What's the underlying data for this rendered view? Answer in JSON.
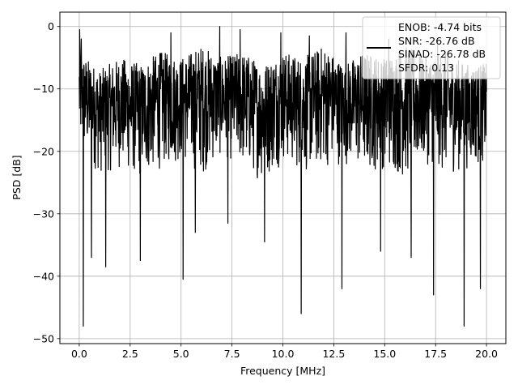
{
  "chart_data": {
    "type": "line",
    "title": "",
    "xlabel": "Frequency [MHz]",
    "ylabel": "PSD [dB]",
    "xlim": [
      -0.95,
      20.95
    ],
    "ylim": [
      -50.8,
      2.3
    ],
    "x_ticks": [
      0.0,
      2.5,
      5.0,
      7.5,
      10.0,
      12.5,
      15.0,
      17.5,
      20.0
    ],
    "x_tick_labels": [
      "0.0",
      "2.5",
      "5.0",
      "7.5",
      "10.0",
      "12.5",
      "15.0",
      "17.5",
      "20.0"
    ],
    "y_ticks": [
      0,
      -10,
      -20,
      -30,
      -40,
      -50
    ],
    "y_tick_labels": [
      "0",
      "−10",
      "−20",
      "−30",
      "−40",
      "−50"
    ],
    "grid": true,
    "legend_position": "top-right",
    "legend": {
      "lines": [
        "ENOB: -4.74 bits",
        "SNR: -26.76 dB",
        "SINAD: -26.78 dB",
        "SFDR: 0.13"
      ]
    },
    "series": [
      {
        "color": "#000000",
        "x_range": [
          0,
          20
        ],
        "band_upper": [
          -4,
          -7,
          -5,
          -6,
          -4,
          -5,
          -3,
          -5,
          -4,
          -6,
          -4,
          -5,
          -3,
          -6,
          -4,
          -5,
          -3,
          -5,
          -4,
          -6,
          -6
        ],
        "band_lower": [
          -20,
          -24,
          -23,
          -25,
          -23,
          -22,
          -24,
          -21,
          -23,
          -25,
          -22,
          -24,
          -23,
          -22,
          -24,
          -23,
          -25,
          -22,
          -24,
          -23,
          -22
        ],
        "peaks": [
          {
            "x": 0.02,
            "y": -0.5
          },
          {
            "x": 0.1,
            "y": -2.0
          },
          {
            "x": 4.5,
            "y": -1.0
          },
          {
            "x": 6.9,
            "y": 0.0
          },
          {
            "x": 7.9,
            "y": -0.5
          },
          {
            "x": 9.9,
            "y": -1.0
          },
          {
            "x": 11.3,
            "y": -1.5
          },
          {
            "x": 13.1,
            "y": -1.0
          },
          {
            "x": 15.2,
            "y": -2.0
          },
          {
            "x": 17.6,
            "y": -3.0
          }
        ],
        "dips": [
          {
            "x": 0.2,
            "y": -48.0
          },
          {
            "x": 0.6,
            "y": -37.0
          },
          {
            "x": 1.3,
            "y": -38.5
          },
          {
            "x": 3.0,
            "y": -37.5
          },
          {
            "x": 5.1,
            "y": -40.5
          },
          {
            "x": 5.7,
            "y": -33.0
          },
          {
            "x": 7.3,
            "y": -31.5
          },
          {
            "x": 9.1,
            "y": -34.5
          },
          {
            "x": 10.9,
            "y": -46.0
          },
          {
            "x": 12.9,
            "y": -42.0
          },
          {
            "x": 13.1,
            "y": -45.5
          },
          {
            "x": 14.8,
            "y": -36.0
          },
          {
            "x": 16.3,
            "y": -37.0
          },
          {
            "x": 17.4,
            "y": -43.0
          },
          {
            "x": 18.9,
            "y": -48.0
          },
          {
            "x": 19.7,
            "y": -42.0
          }
        ]
      }
    ]
  }
}
